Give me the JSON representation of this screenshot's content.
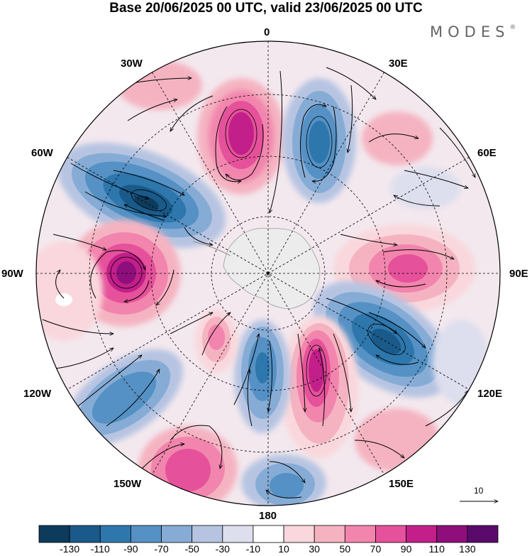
{
  "title": "Base 20/06/2025 00 UTC, valid 23/06/2025 00 UTC",
  "brand": "MODES",
  "brand_mark": "®",
  "longitude_labels": {
    "lon0": "0",
    "lon30e": "30E",
    "lon60e": "60E",
    "lon90e": "90E",
    "lon120e": "120E",
    "lon150e": "150E",
    "lon180": "180",
    "lon150w": "150W",
    "lon120w": "120W",
    "lon90w": "90W",
    "lon60w": "60W",
    "lon30w": "30W"
  },
  "reference_vector": "10",
  "colorbar": {
    "ticks": [
      "-130",
      "-110",
      "-90",
      "-70",
      "-50",
      "-30",
      "-10",
      "10",
      "30",
      "50",
      "70",
      "90",
      "110",
      "130"
    ],
    "colors": [
      "#0d3b5c",
      "#1a5a8a",
      "#2e77ad",
      "#5591c4",
      "#86acd6",
      "#b6c4e2",
      "#dddfee",
      "#ffffff",
      "#f9d7dc",
      "#f5b3c1",
      "#f285ad",
      "#e5519a",
      "#c21f8a",
      "#8e0f7c",
      "#5a0a6b"
    ]
  },
  "anomaly_centers": [
    {
      "id": "pos-0-15w",
      "sign": "positive",
      "value": 110
    },
    {
      "id": "neg-15e",
      "sign": "negative",
      "value": -110
    },
    {
      "id": "neg-55w",
      "sign": "negative",
      "value": -130
    },
    {
      "id": "pos-95w",
      "sign": "positive",
      "value": 130
    },
    {
      "id": "pos-90e",
      "sign": "positive",
      "value": 90
    },
    {
      "id": "neg-120e",
      "sign": "negative",
      "value": -110
    },
    {
      "id": "pos-160e",
      "sign": "positive",
      "value": 110
    },
    {
      "id": "neg-175w",
      "sign": "negative",
      "value": -90
    },
    {
      "id": "pos-155w",
      "sign": "positive",
      "value": 50
    },
    {
      "id": "neg-130w",
      "sign": "negative",
      "value": -70
    },
    {
      "id": "pos-155w-outer",
      "sign": "positive",
      "value": 90
    },
    {
      "id": "neg-170e-outer",
      "sign": "negative",
      "value": -90
    },
    {
      "id": "pos-45e",
      "sign": "positive",
      "value": 30
    },
    {
      "id": "neg-70e",
      "sign": "negative",
      "value": -30
    }
  ]
}
